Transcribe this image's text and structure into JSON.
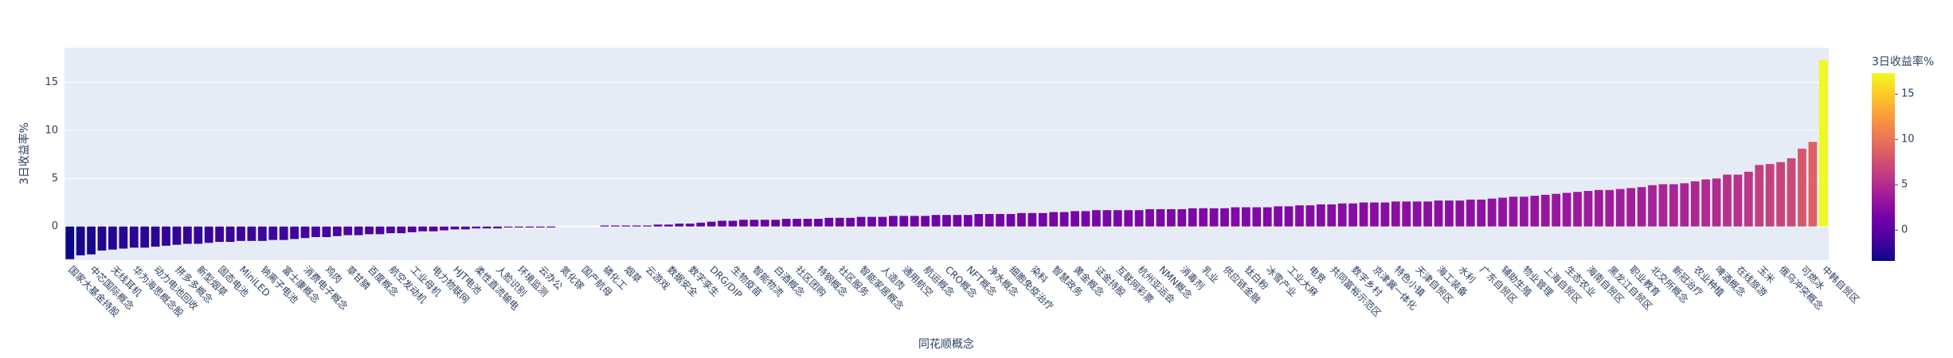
{
  "chart_data": {
    "type": "bar",
    "x_label": "同花顺概念",
    "y_label": "3日收益率%",
    "colorbar_title": "3日收益率%",
    "colorscale": [
      "#0d0887",
      "#46039f",
      "#7201a8",
      "#9c179e",
      "#bd3786",
      "#d8576b",
      "#ed7953",
      "#fb9f3a",
      "#fdca26",
      "#f0f921"
    ],
    "colorbar_ticks": [
      0,
      5,
      10,
      15
    ],
    "ylim": [
      -3.5,
      18.6
    ],
    "yticks": [
      0,
      5,
      10,
      15
    ],
    "grid": true,
    "categories": [
      "国家大基金持股",
      null,
      "中芯国际概念",
      null,
      "无线耳机",
      null,
      "华为海思概念股",
      null,
      "动力电池回收",
      null,
      "拼多多概念",
      null,
      "新型烟草",
      null,
      "固态电池",
      null,
      "MiniLED",
      null,
      "钠离子电池",
      null,
      "富士康概念",
      null,
      "消费电子概念",
      null,
      "鸡肉",
      null,
      "草甘膦",
      null,
      "百度概念",
      null,
      "航空发动机",
      null,
      "工业母机",
      null,
      "电力物联网",
      null,
      "HJT电池",
      null,
      "柔性直流输电",
      null,
      "人脸识别",
      null,
      "环境监测",
      null,
      "云办公",
      null,
      "氮化镓",
      null,
      "国产航母",
      null,
      "磷化工",
      null,
      "烟草",
      null,
      "云游戏",
      null,
      "数据安全",
      null,
      "数字孪生",
      null,
      "DRG/DIP",
      null,
      "生物疫苗",
      null,
      "智能物流",
      null,
      "白酒概念",
      null,
      "社区团购",
      null,
      "特钢概念",
      null,
      "社区服务",
      null,
      "智能家居概念",
      null,
      "人造肉",
      null,
      "通用航空",
      null,
      "航运概念",
      null,
      "CRO概念",
      null,
      "NFT概念",
      null,
      "净水概念",
      null,
      "细胞免疫治疗",
      null,
      "染料",
      null,
      "智慧政务",
      null,
      "黄金概念",
      null,
      "证金持股",
      null,
      "互联网彩票",
      null,
      "杭州亚运会",
      null,
      "NMN概念",
      null,
      "消毒剂",
      null,
      "乳业",
      null,
      "供应链金融",
      null,
      "钛白粉",
      null,
      "冰雪产业",
      null,
      "工业大麻",
      null,
      "电竞",
      null,
      "共同富裕示范区",
      null,
      "数字乡村",
      null,
      "京津冀一体化",
      null,
      "特色小镇",
      null,
      "天津自贸区",
      null,
      "海工装备",
      null,
      "水利",
      null,
      "广东自贸区",
      null,
      "辅助生殖",
      null,
      "物业管理",
      null,
      "上海自贸区",
      null,
      "生态农业",
      null,
      "海南自贸区",
      null,
      "黑龙江自贸区",
      null,
      "职业教育",
      null,
      "北交所概念",
      null,
      "新冠治疗",
      null,
      "农业种植",
      null,
      "啤酒概念",
      null,
      "在线旅游",
      null,
      "玉米",
      null,
      "俄乌冲突概念",
      null,
      "可燃冰",
      null,
      "中韩自贸区"
    ],
    "values": [
      -3.4,
      -3.0,
      -2.9,
      -2.5,
      -2.4,
      -2.3,
      -2.2,
      -2.2,
      -2.1,
      -2.0,
      -1.9,
      -1.8,
      -1.8,
      -1.7,
      -1.6,
      -1.6,
      -1.5,
      -1.5,
      -1.5,
      -1.4,
      -1.4,
      -1.3,
      -1.2,
      -1.1,
      -1.1,
      -1.0,
      -0.9,
      -0.9,
      -0.8,
      -0.8,
      -0.7,
      -0.7,
      -0.6,
      -0.5,
      -0.5,
      -0.4,
      -0.3,
      -0.3,
      -0.2,
      -0.2,
      -0.2,
      -0.1,
      -0.1,
      -0.1,
      -0.1,
      -0.1,
      0,
      0,
      0,
      0,
      0.1,
      0.1,
      0.1,
      0.1,
      0.1,
      0.2,
      0.2,
      0.3,
      0.3,
      0.4,
      0.5,
      0.6,
      0.6,
      0.7,
      0.7,
      0.7,
      0.7,
      0.8,
      0.8,
      0.8,
      0.8,
      0.9,
      0.9,
      0.9,
      1.0,
      1.0,
      1.0,
      1.1,
      1.1,
      1.1,
      1.1,
      1.2,
      1.2,
      1.2,
      1.2,
      1.3,
      1.3,
      1.3,
      1.3,
      1.4,
      1.4,
      1.4,
      1.5,
      1.5,
      1.6,
      1.6,
      1.7,
      1.7,
      1.7,
      1.7,
      1.7,
      1.8,
      1.8,
      1.8,
      1.8,
      1.9,
      1.9,
      1.9,
      1.9,
      2.0,
      2.0,
      2.0,
      2.0,
      2.1,
      2.1,
      2.2,
      2.2,
      2.3,
      2.3,
      2.4,
      2.4,
      2.5,
      2.5,
      2.5,
      2.6,
      2.6,
      2.6,
      2.6,
      2.7,
      2.7,
      2.7,
      2.8,
      2.8,
      2.9,
      3.0,
      3.1,
      3.1,
      3.2,
      3.3,
      3.4,
      3.5,
      3.6,
      3.7,
      3.8,
      3.8,
      3.9,
      4.0,
      4.1,
      4.3,
      4.4,
      4.4,
      4.5,
      4.7,
      4.9,
      5.0,
      5.4,
      5.4,
      5.7,
      6.4,
      6.5,
      6.7,
      7.1,
      8.1,
      8.8,
      17.3
    ]
  }
}
